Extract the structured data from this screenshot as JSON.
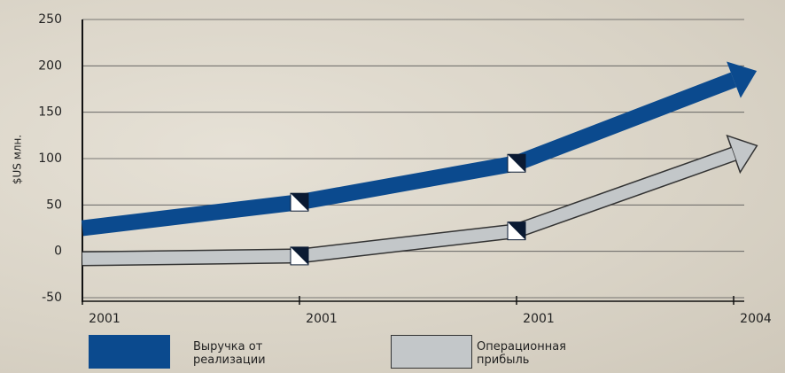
{
  "chart_data": {
    "type": "line",
    "y_label": "$US млн.",
    "categories": [
      "2001",
      "2001",
      "2001",
      "2004"
    ],
    "series": [
      {
        "name": "Выручка от реализации",
        "color": "#0b4a8e",
        "values": [
          25,
          53,
          95,
          185
        ]
      },
      {
        "name": "Операционная прибыль",
        "color": "#c3c7c9",
        "values": [
          -8,
          -5,
          22,
          105
        ]
      }
    ],
    "ylim": [
      -50,
      250
    ],
    "yticks": [
      -50,
      0,
      50,
      100,
      150,
      200,
      250
    ],
    "grid": true
  }
}
